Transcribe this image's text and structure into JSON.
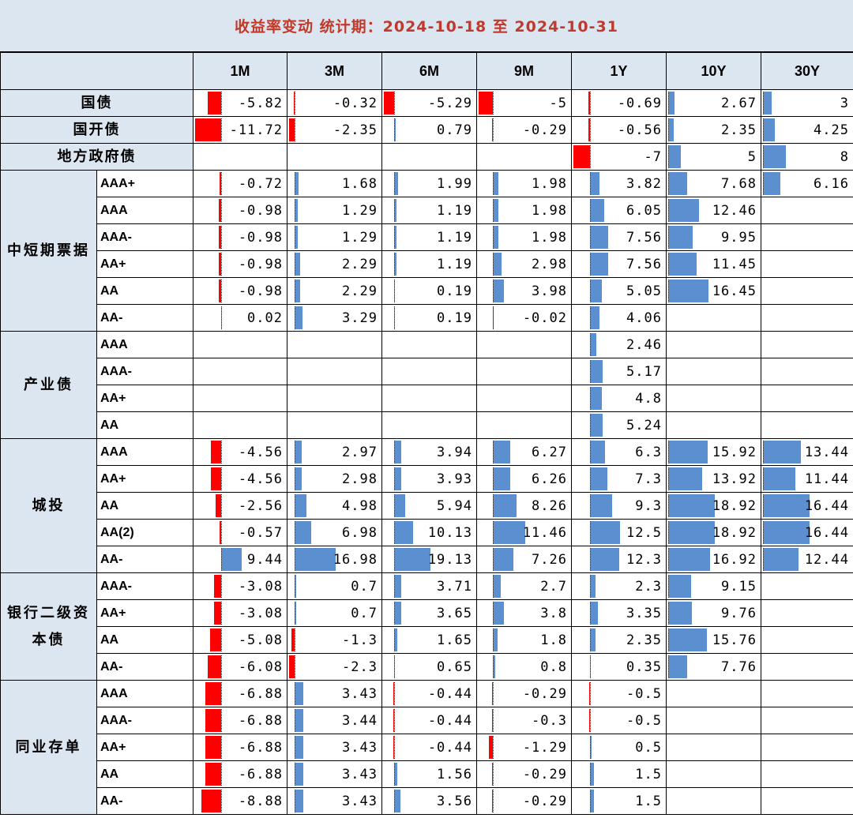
{
  "title": "收益率变动  统计期：2024-10-18 至 2024-10-31",
  "colors": {
    "positive": "#5b8fd0",
    "negative": "#ff0000",
    "header_bg": "#dce6f1",
    "title_text": "#c0392b"
  },
  "columns": [
    "1M",
    "3M",
    "6M",
    "9M",
    "1Y",
    "10Y",
    "30Y"
  ],
  "rows": [
    {
      "group": "国债",
      "sub": "",
      "values": [
        "-5.82",
        "-0.32",
        "-5.29",
        "-5",
        "-0.69",
        "2.67",
        "3"
      ]
    },
    {
      "group": "国开债",
      "sub": "",
      "values": [
        "-11.72",
        "-2.35",
        "0.79",
        "-0.29",
        "-0.56",
        "2.35",
        "4.25"
      ]
    },
    {
      "group": "地方政府债",
      "sub": "",
      "values": [
        "",
        "",
        "",
        "",
        "-7",
        "5",
        "8"
      ]
    },
    {
      "group": "中短期票据",
      "sub": "AAA+",
      "values": [
        "-0.72",
        "1.68",
        "1.99",
        "1.98",
        "3.82",
        "7.68",
        "6.16"
      ]
    },
    {
      "group": "中短期票据",
      "sub": "AAA",
      "values": [
        "-0.98",
        "1.29",
        "1.19",
        "1.98",
        "6.05",
        "12.46",
        ""
      ]
    },
    {
      "group": "中短期票据",
      "sub": "AAA-",
      "values": [
        "-0.98",
        "1.29",
        "1.19",
        "1.98",
        "7.56",
        "9.95",
        ""
      ]
    },
    {
      "group": "中短期票据",
      "sub": "AA+",
      "values": [
        "-0.98",
        "2.29",
        "1.19",
        "2.98",
        "7.56",
        "11.45",
        ""
      ]
    },
    {
      "group": "中短期票据",
      "sub": "AA",
      "values": [
        "-0.98",
        "2.29",
        "0.19",
        "3.98",
        "5.05",
        "16.45",
        ""
      ]
    },
    {
      "group": "中短期票据",
      "sub": "AA-",
      "values": [
        "0.02",
        "3.29",
        "0.19",
        "-0.02",
        "4.06",
        "",
        ""
      ]
    },
    {
      "group": "产业债",
      "sub": "AAA",
      "values": [
        "",
        "",
        "",
        "",
        "2.46",
        "",
        ""
      ]
    },
    {
      "group": "产业债",
      "sub": "AAA-",
      "values": [
        "",
        "",
        "",
        "",
        "5.17",
        "",
        ""
      ]
    },
    {
      "group": "产业债",
      "sub": "AA+",
      "values": [
        "",
        "",
        "",
        "",
        "4.8",
        "",
        ""
      ]
    },
    {
      "group": "产业债",
      "sub": "AA",
      "values": [
        "",
        "",
        "",
        "",
        "5.24",
        "",
        ""
      ]
    },
    {
      "group": "城投",
      "sub": "AAA",
      "values": [
        "-4.56",
        "2.97",
        "3.94",
        "6.27",
        "6.3",
        "15.92",
        "13.44"
      ]
    },
    {
      "group": "城投",
      "sub": "AA+",
      "values": [
        "-4.56",
        "2.98",
        "3.93",
        "6.26",
        "7.3",
        "13.92",
        "11.44"
      ]
    },
    {
      "group": "城投",
      "sub": "AA",
      "values": [
        "-2.56",
        "4.98",
        "5.94",
        "8.26",
        "9.3",
        "18.92",
        "16.44"
      ]
    },
    {
      "group": "城投",
      "sub": "AA(2)",
      "values": [
        "-0.57",
        "6.98",
        "10.13",
        "11.46",
        "12.5",
        "18.92",
        "16.44"
      ]
    },
    {
      "group": "城投",
      "sub": "AA-",
      "values": [
        "9.44",
        "16.98",
        "19.13",
        "7.26",
        "12.3",
        "16.92",
        "12.44"
      ]
    },
    {
      "group": "银行二级资本债",
      "sub": "AAA-",
      "values": [
        "-3.08",
        "0.7",
        "3.71",
        "2.7",
        "2.3",
        "9.15",
        ""
      ]
    },
    {
      "group": "银行二级资本债",
      "sub": "AA+",
      "values": [
        "-3.08",
        "0.7",
        "3.65",
        "3.8",
        "3.35",
        "9.76",
        ""
      ]
    },
    {
      "group": "银行二级资本债",
      "sub": "AA",
      "values": [
        "-5.08",
        "-1.3",
        "1.65",
        "1.8",
        "2.35",
        "15.76",
        ""
      ]
    },
    {
      "group": "银行二级资本债",
      "sub": "AA-",
      "values": [
        "-6.08",
        "-2.3",
        "0.65",
        "0.8",
        "0.35",
        "7.76",
        ""
      ]
    },
    {
      "group": "同业存单",
      "sub": "AAA",
      "values": [
        "-6.88",
        "3.43",
        "-0.44",
        "-0.29",
        "-0.5",
        "",
        ""
      ]
    },
    {
      "group": "同业存单",
      "sub": "AAA-",
      "values": [
        "-6.88",
        "3.44",
        "-0.44",
        "-0.3",
        "-0.5",
        "",
        ""
      ]
    },
    {
      "group": "同业存单",
      "sub": "AA+",
      "values": [
        "-6.88",
        "3.43",
        "-0.44",
        "-1.29",
        "0.5",
        "",
        ""
      ]
    },
    {
      "group": "同业存单",
      "sub": "AA",
      "values": [
        "-6.88",
        "3.43",
        "1.56",
        "-0.29",
        "1.5",
        "",
        ""
      ]
    },
    {
      "group": "同业存单",
      "sub": "AA-",
      "values": [
        "-8.88",
        "3.43",
        "3.56",
        "-0.29",
        "1.5",
        "",
        ""
      ]
    }
  ]
}
